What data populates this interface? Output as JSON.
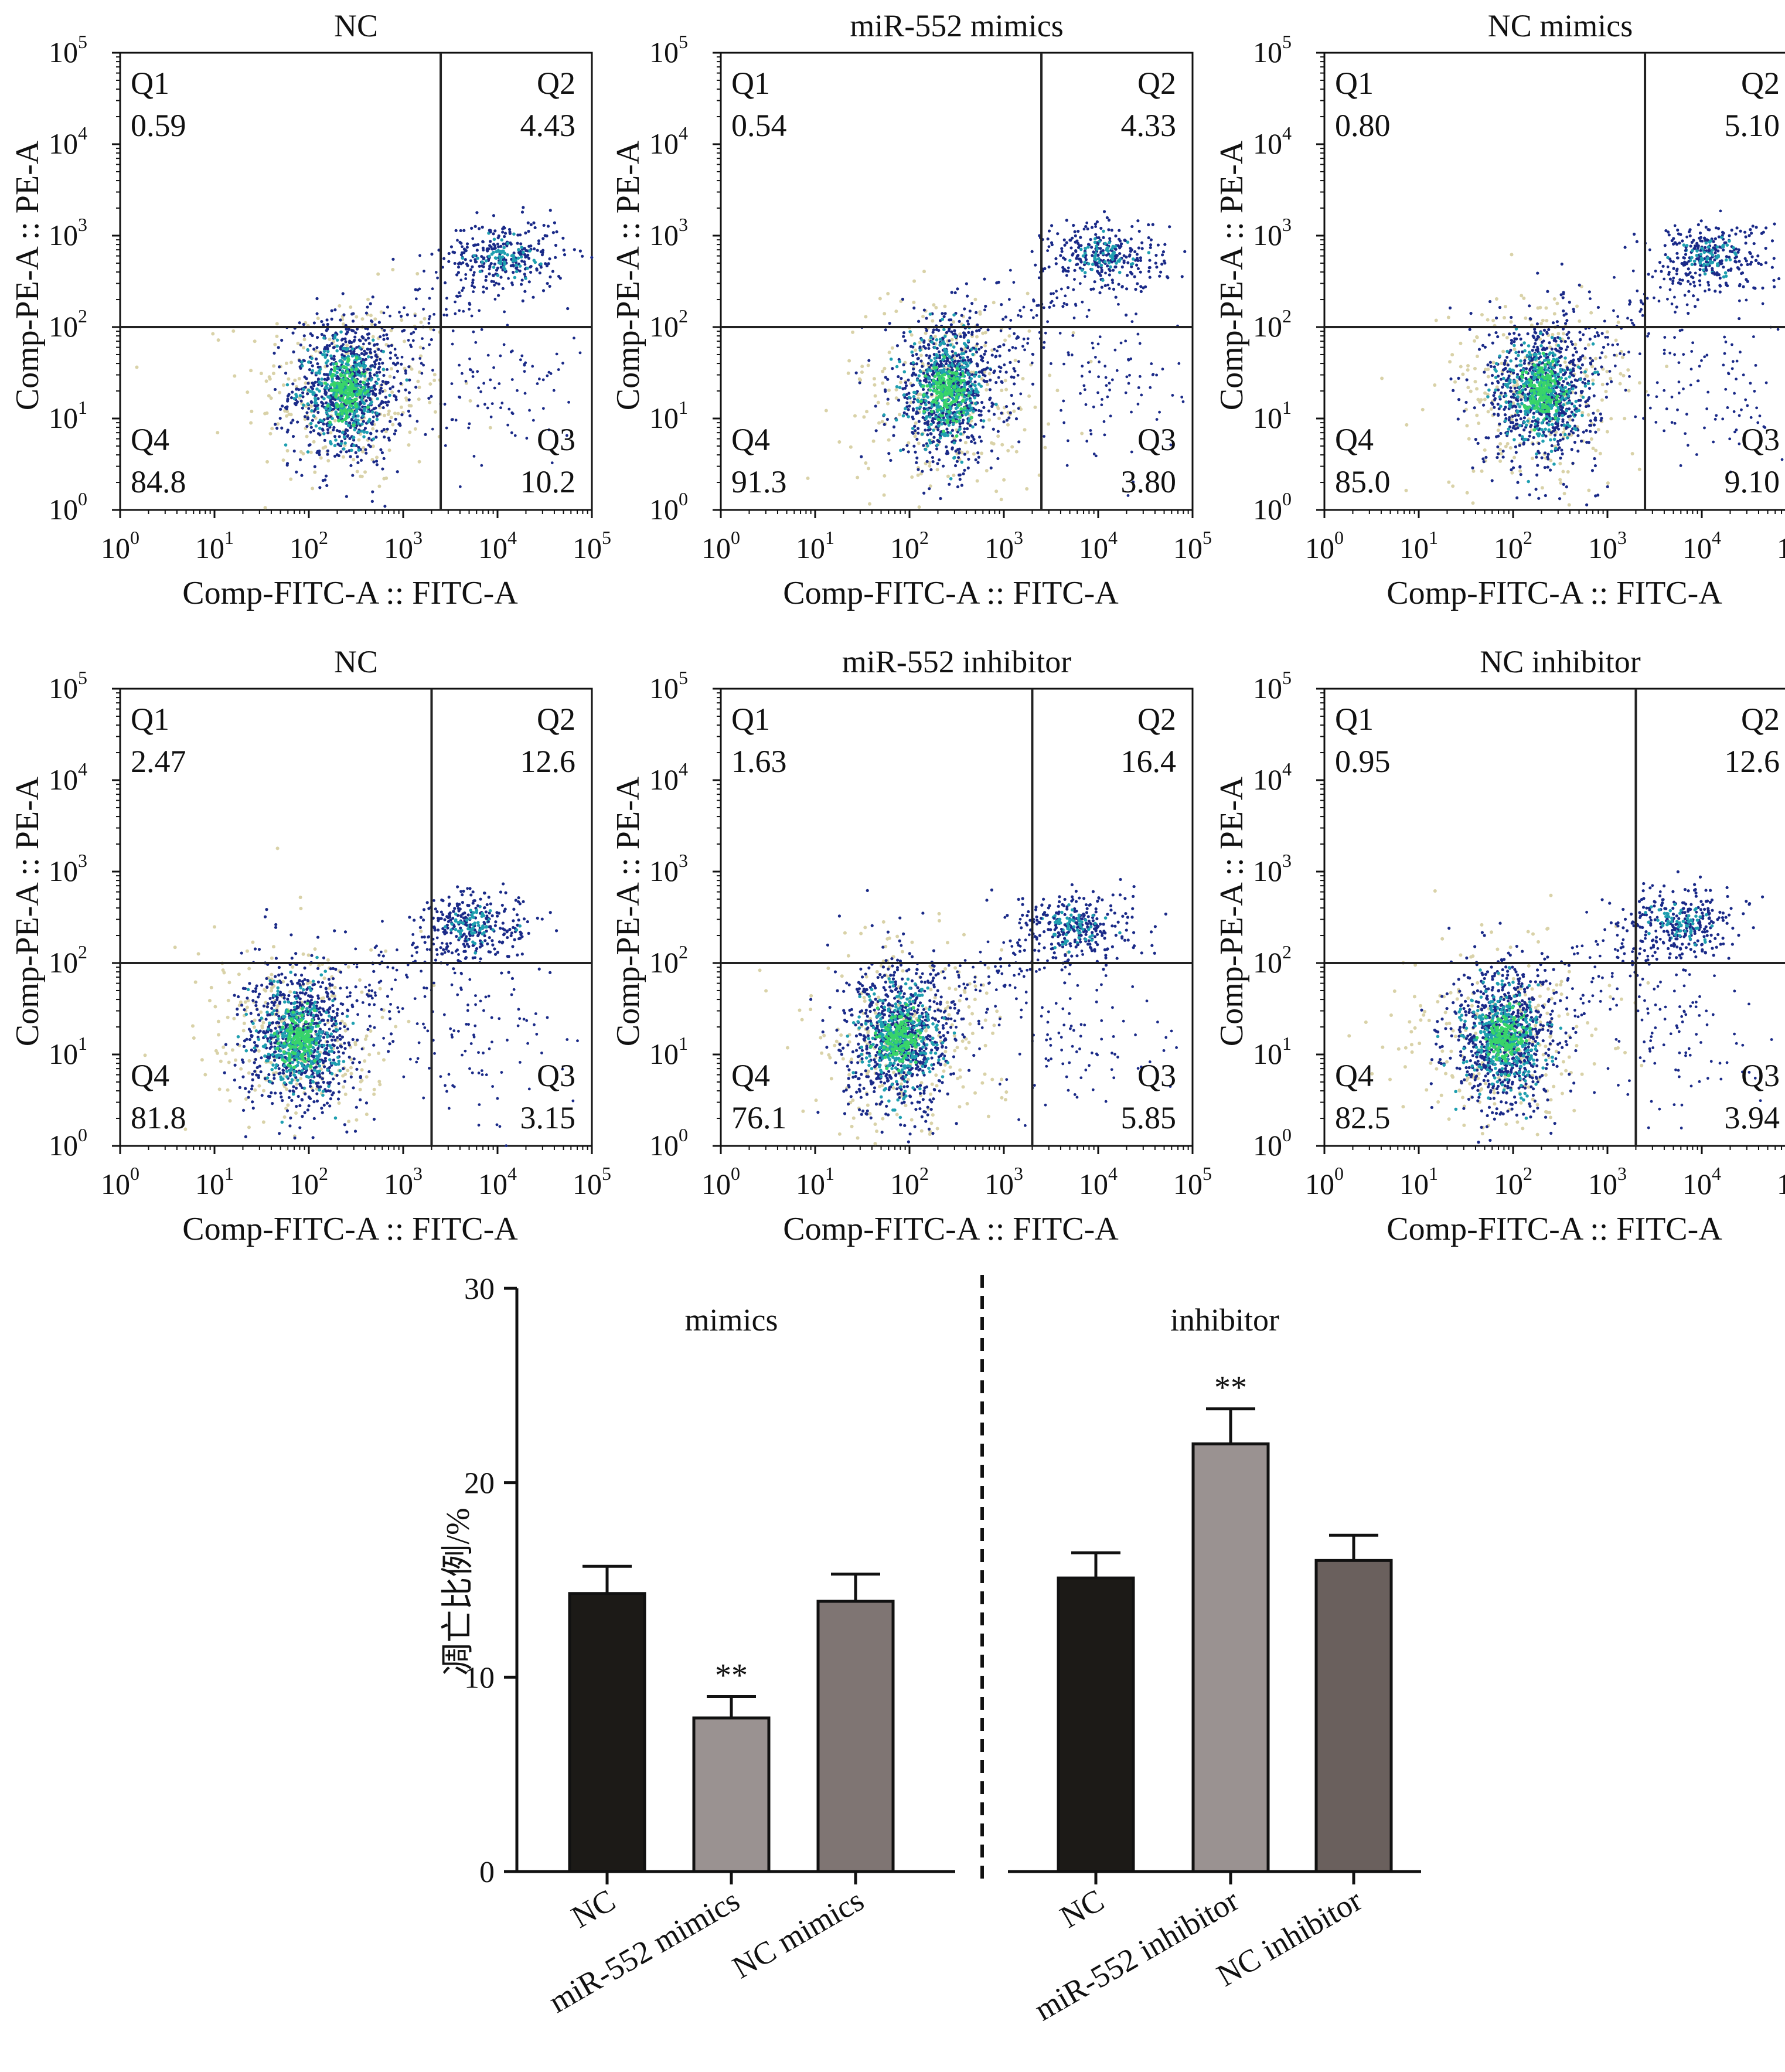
{
  "flow_panels": [
    {
      "title": "NC",
      "xlabel": "Comp-FITC-A :: FITC-A",
      "ylabel": "Comp-PE-A :: PE-A",
      "quadrants": {
        "Q1": {
          "label": "Q1",
          "value": "0.59"
        },
        "Q2": {
          "label": "Q2",
          "value": "4.43"
        },
        "Q3": {
          "label": "Q3",
          "value": "10.2"
        },
        "Q4": {
          "label": "Q4",
          "value": "84.8"
        }
      },
      "gate": {
        "x": 2500,
        "y": 100
      },
      "populations": {
        "live": {
          "x": 250,
          "y": 20
        },
        "apoptotic": {
          "x": 12000,
          "y": 600
        }
      }
    },
    {
      "title": "miR-552 mimics",
      "xlabel": "Comp-FITC-A :: FITC-A",
      "ylabel": "Comp-PE-A :: PE-A",
      "quadrants": {
        "Q1": {
          "label": "Q1",
          "value": "0.54"
        },
        "Q2": {
          "label": "Q2",
          "value": "4.33"
        },
        "Q3": {
          "label": "Q3",
          "value": "3.80"
        },
        "Q4": {
          "label": "Q4",
          "value": "91.3"
        }
      },
      "gate": {
        "x": 2500,
        "y": 100
      },
      "populations": {
        "live": {
          "x": 250,
          "y": 20
        },
        "apoptotic": {
          "x": 12000,
          "y": 600
        }
      }
    },
    {
      "title": "NC mimics",
      "xlabel": "Comp-FITC-A :: FITC-A",
      "ylabel": "Comp-PE-A :: PE-A",
      "quadrants": {
        "Q1": {
          "label": "Q1",
          "value": "0.80"
        },
        "Q2": {
          "label": "Q2",
          "value": "5.10"
        },
        "Q3": {
          "label": "Q3",
          "value": "9.10"
        },
        "Q4": {
          "label": "Q4",
          "value": "85.0"
        }
      },
      "gate": {
        "x": 2500,
        "y": 100
      },
      "populations": {
        "live": {
          "x": 200,
          "y": 20
        },
        "apoptotic": {
          "x": 12000,
          "y": 600
        }
      }
    },
    {
      "title": "NC",
      "xlabel": "Comp-FITC-A :: FITC-A",
      "ylabel": "Comp-PE-A :: PE-A",
      "quadrants": {
        "Q1": {
          "label": "Q1",
          "value": "2.47"
        },
        "Q2": {
          "label": "Q2",
          "value": "12.6"
        },
        "Q3": {
          "label": "Q3",
          "value": "3.15"
        },
        "Q4": {
          "label": "Q4",
          "value": "81.8"
        }
      },
      "gate": {
        "x": 2000,
        "y": 100
      },
      "populations": {
        "live": {
          "x": 80,
          "y": 15
        },
        "apoptotic": {
          "x": 6000,
          "y": 250
        }
      }
    },
    {
      "title": "miR-552 inhibitor",
      "xlabel": "Comp-FITC-A :: FITC-A",
      "ylabel": "Comp-PE-A :: PE-A",
      "quadrants": {
        "Q1": {
          "label": "Q1",
          "value": "1.63"
        },
        "Q2": {
          "label": "Q2",
          "value": "16.4"
        },
        "Q3": {
          "label": "Q3",
          "value": "5.85"
        },
        "Q4": {
          "label": "Q4",
          "value": "76.1"
        }
      },
      "gate": {
        "x": 2000,
        "y": 100
      },
      "populations": {
        "live": {
          "x": 80,
          "y": 15
        },
        "apoptotic": {
          "x": 6000,
          "y": 250
        }
      }
    },
    {
      "title": "NC inhibitor",
      "xlabel": "Comp-FITC-A :: FITC-A",
      "ylabel": "Comp-PE-A :: PE-A",
      "quadrants": {
        "Q1": {
          "label": "Q1",
          "value": "0.95"
        },
        "Q2": {
          "label": "Q2",
          "value": "12.6"
        },
        "Q3": {
          "label": "Q3",
          "value": "3.94"
        },
        "Q4": {
          "label": "Q4",
          "value": "82.5"
        }
      },
      "gate": {
        "x": 2000,
        "y": 100
      },
      "populations": {
        "live": {
          "x": 80,
          "y": 15
        },
        "apoptotic": {
          "x": 6000,
          "y": 280
        }
      }
    }
  ],
  "flow_axes": {
    "scale": "log",
    "range": [
      1,
      100000
    ],
    "ticks": [
      "10",
      "10",
      "10",
      "10",
      "10",
      "10"
    ],
    "exponents": [
      "0",
      "1",
      "2",
      "3",
      "4",
      "5"
    ]
  },
  "chart_data": {
    "type": "bar",
    "ylabel": "凋亡比例/%",
    "ylim": [
      0,
      30
    ],
    "yticks": [
      "0",
      "10",
      "20",
      "30"
    ],
    "groups": [
      {
        "label": "mimics",
        "categories": [
          "NC",
          "miR-552 mimics",
          "NC mimics"
        ],
        "values": [
          14.3,
          7.9,
          13.9
        ],
        "errors": [
          1.4,
          1.1,
          1.4
        ],
        "annotations": [
          "",
          "**",
          ""
        ],
        "colors": [
          "#1c1a17",
          "#9a9291",
          "#7f7573"
        ]
      },
      {
        "label": "inhibitor",
        "categories": [
          "NC",
          "miR-552 inhibitor",
          "NC inhibitor"
        ],
        "values": [
          15.1,
          22.0,
          16.0
        ],
        "errors": [
          1.3,
          1.8,
          1.3
        ],
        "annotations": [
          "",
          "**",
          ""
        ],
        "colors": [
          "#1c1a17",
          "#9a9291",
          "#6a605d"
        ]
      }
    ],
    "grid": false
  },
  "colors": {
    "axis": "#111111",
    "gate": "#222222",
    "dense": "#38d46a",
    "mid": "#1f9fb0",
    "sparse": "#1a2a88",
    "faint": "#d9d2a8"
  }
}
